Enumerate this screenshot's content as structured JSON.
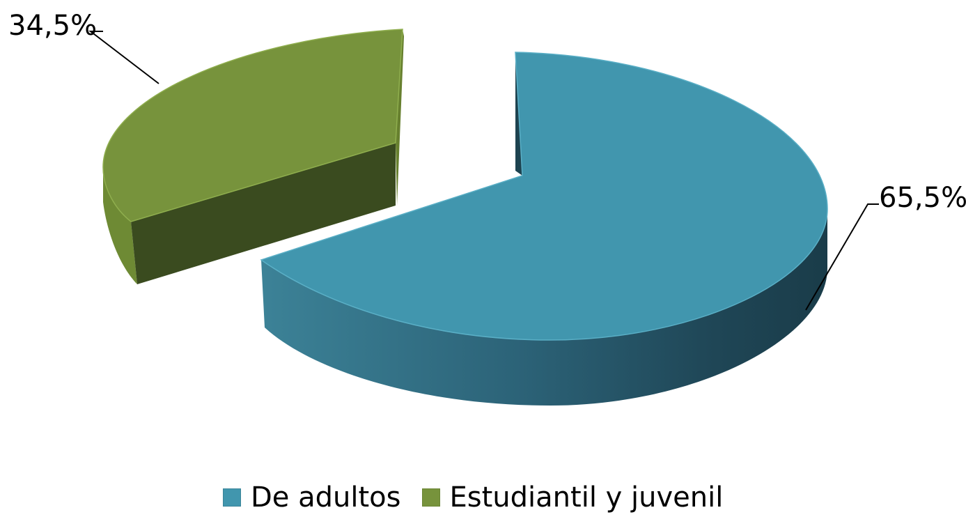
{
  "chart_data": {
    "type": "pie",
    "style": "3d-exploded",
    "slices": [
      {
        "label": "De adultos",
        "value": 65.5,
        "display": "65,5%",
        "color": "#4196AE"
      },
      {
        "label": "Estudiantil y juvenil",
        "value": 34.5,
        "display": "34,5%",
        "color": "#77933C"
      }
    ],
    "legend": {
      "placement": "bottom",
      "items": [
        "De adultos",
        "Estudiantil y juvenil"
      ]
    }
  }
}
